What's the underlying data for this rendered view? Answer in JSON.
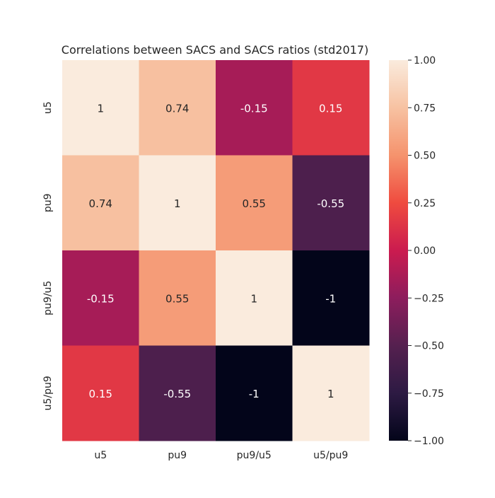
{
  "chart_data": {
    "type": "heatmap",
    "title": "Correlations between SACS and SACS ratios (std2017)",
    "rows": [
      "u5",
      "pu9",
      "pu9/u5",
      "u5/pu9"
    ],
    "columns": [
      "u5",
      "pu9",
      "pu9/u5",
      "u5/pu9"
    ],
    "values": [
      [
        1,
        0.74,
        -0.15,
        0.15
      ],
      [
        0.74,
        1,
        0.55,
        -0.55
      ],
      [
        -0.15,
        0.55,
        1,
        -1
      ],
      [
        0.15,
        -0.55,
        -1,
        1
      ]
    ],
    "cell_labels": [
      [
        "1",
        "0.74",
        "-0.15",
        "0.15"
      ],
      [
        "0.74",
        "1",
        "0.55",
        "-0.55"
      ],
      [
        "-0.15",
        "0.55",
        "1",
        "-1"
      ],
      [
        "0.15",
        "-0.55",
        "-1",
        "1"
      ]
    ],
    "colorbar": {
      "range": [
        -1,
        1
      ],
      "ticks": [
        1,
        0.75,
        0.5,
        0.25,
        0,
        -0.25,
        -0.5,
        -0.75,
        -1
      ],
      "tick_labels": [
        "1.00",
        "0.75",
        "0.50",
        "0.25",
        "0.00",
        "−0.25",
        "−0.50",
        "−0.75",
        "−1.00"
      ],
      "colormap": "rocket",
      "color_stops": [
        [
          -1.0,
          "#03051a"
        ],
        [
          -0.75,
          "#2d1a43"
        ],
        [
          -0.5,
          "#55204f"
        ],
        [
          -0.25,
          "#8d1d5d"
        ],
        [
          0.0,
          "#cb1b4f"
        ],
        [
          0.25,
          "#ef4b3f"
        ],
        [
          0.5,
          "#f5936d"
        ],
        [
          0.75,
          "#f7c2a2"
        ],
        [
          1.0,
          "#faebdd"
        ]
      ]
    }
  }
}
